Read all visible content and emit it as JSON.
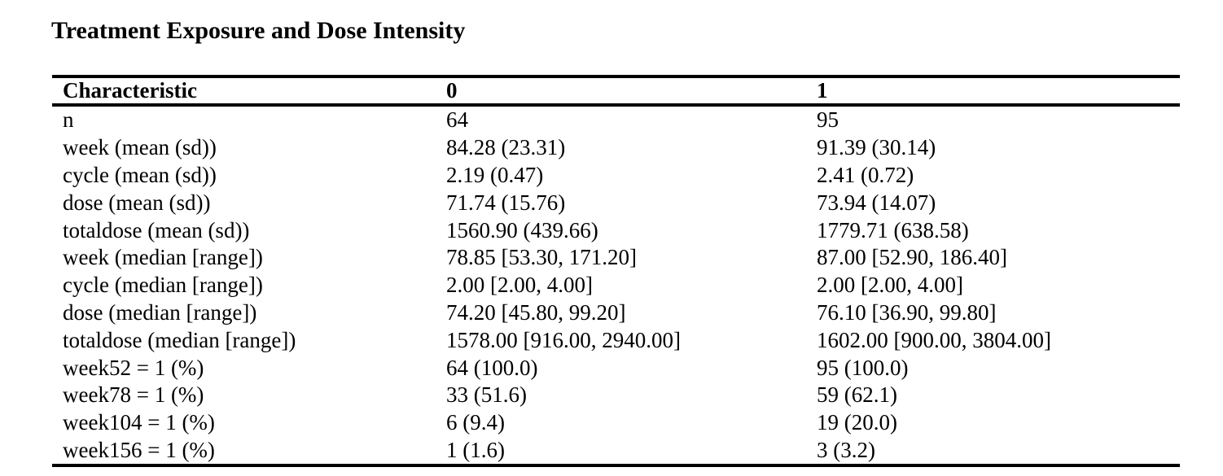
{
  "title": "Treatment Exposure and Dose Intensity",
  "table": {
    "columns": [
      "Characteristic",
      "0",
      "1"
    ],
    "rows": [
      {
        "characteristic": "n",
        "group0": "64",
        "group1": "95"
      },
      {
        "characteristic": "week (mean (sd))",
        "group0": "84.28 (23.31)",
        "group1": "91.39 (30.14)"
      },
      {
        "characteristic": "cycle (mean (sd))",
        "group0": "2.19 (0.47)",
        "group1": "2.41 (0.72)"
      },
      {
        "characteristic": "dose (mean (sd))",
        "group0": "71.74 (15.76)",
        "group1": "73.94 (14.07)"
      },
      {
        "characteristic": "totaldose (mean (sd))",
        "group0": "1560.90 (439.66)",
        "group1": "1779.71 (638.58)"
      },
      {
        "characteristic": "week (median [range])",
        "group0": "78.85 [53.30, 171.20]",
        "group1": "87.00 [52.90, 186.40]"
      },
      {
        "characteristic": "cycle (median [range])",
        "group0": "2.00 [2.00, 4.00]",
        "group1": "2.00 [2.00, 4.00]"
      },
      {
        "characteristic": "dose (median [range])",
        "group0": "74.20 [45.80, 99.20]",
        "group1": "76.10 [36.90, 99.80]"
      },
      {
        "characteristic": "totaldose (median [range])",
        "group0": "1578.00 [916.00, 2940.00]",
        "group1": "1602.00 [900.00, 3804.00]"
      },
      {
        "characteristic": "week52 = 1 (%)",
        "group0": "64 (100.0)",
        "group1": "95 (100.0)"
      },
      {
        "characteristic": "week78 = 1 (%)",
        "group0": "33 (51.6)",
        "group1": "59 (62.1)"
      },
      {
        "characteristic": "week104 = 1 (%)",
        "group0": "6 (9.4)",
        "group1": "19 (20.0)"
      },
      {
        "characteristic": "week156 = 1 (%)",
        "group0": "1 (1.6)",
        "group1": "3 (3.2)"
      }
    ]
  }
}
